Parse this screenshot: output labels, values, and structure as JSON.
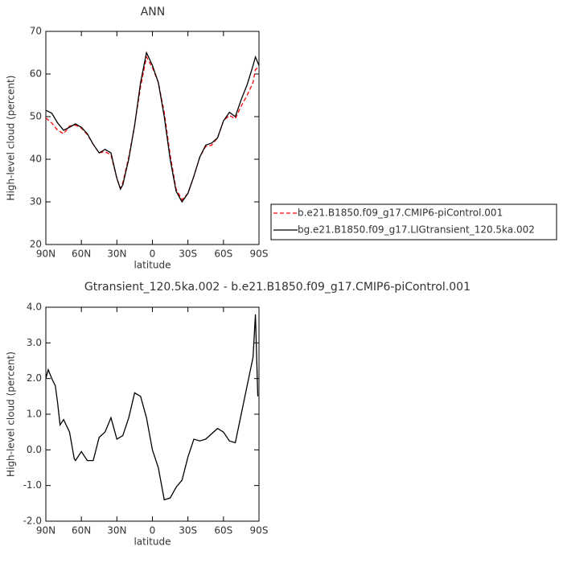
{
  "chart_data": [
    {
      "type": "line",
      "title": "ANN",
      "xlabel": "latitude",
      "ylabel": "High-level cloud (percent)",
      "x": [
        90,
        85,
        80,
        75,
        70,
        65,
        60,
        55,
        50,
        45,
        40,
        35,
        30,
        27,
        25,
        20,
        15,
        10,
        5,
        0,
        -5,
        -10,
        -15,
        -20,
        -25,
        -30,
        -35,
        -40,
        -45,
        -50,
        -55,
        -60,
        -65,
        -70,
        -75,
        -80,
        -85,
        -87,
        -90
      ],
      "series": [
        {
          "name": "b.e21.B1850.f09_g17.CMIP6-piControl.001",
          "color": "#ff0000",
          "dash": true,
          "values": [
            49.7,
            48.5,
            46.8,
            46,
            47.8,
            48,
            47.3,
            45.8,
            43.5,
            41.5,
            41.8,
            41,
            35.5,
            33.2,
            34.5,
            40.5,
            48,
            57,
            64,
            61.5,
            58,
            51,
            41,
            33,
            30.5,
            32,
            36,
            40.5,
            43,
            43.3,
            45,
            49,
            50.3,
            49.5,
            52.5,
            55,
            58,
            61,
            61.8
          ]
        },
        {
          "name": "bg.e21.B1850.f09_g17.LIGtransient_120.5ka.002",
          "color": "#000000",
          "dash": false,
          "values": [
            51.5,
            50.8,
            48.5,
            46.8,
            47.5,
            48.3,
            47.5,
            46,
            43.5,
            41.5,
            42.3,
            41.5,
            35.5,
            33,
            34,
            40,
            48,
            58,
            65,
            62,
            58,
            50,
            40,
            32.5,
            30,
            32,
            36,
            40.5,
            43.3,
            43.8,
            45,
            49,
            51,
            50,
            54,
            57.5,
            62,
            64,
            62
          ]
        }
      ],
      "xlim": [
        90,
        -90
      ],
      "xticks": [
        {
          "value": 90,
          "label": "90N"
        },
        {
          "value": 60,
          "label": "60N"
        },
        {
          "value": 30,
          "label": "30N"
        },
        0,
        {
          "value": -30,
          "label": "30S"
        },
        {
          "value": -60,
          "label": "60S"
        },
        {
          "value": -90,
          "label": "90S"
        }
      ],
      "ylim": [
        20,
        70
      ],
      "yticks": [
        20,
        30,
        40,
        50,
        60,
        70
      ]
    },
    {
      "type": "line",
      "title": "Gtransient_120.5ka.002 - b.e21.B1850.f09_g17.CMIP6-piControl.001",
      "xlabel": "latitude",
      "ylabel": "High-level cloud (percent)",
      "x": [
        90,
        88,
        85,
        82,
        80,
        78,
        75,
        70,
        66,
        65,
        60,
        55,
        50,
        45,
        40,
        35,
        30,
        25,
        20,
        15,
        10,
        5,
        0,
        -5,
        -10,
        -15,
        -20,
        -25,
        -30,
        -35,
        -40,
        -45,
        -50,
        -55,
        -60,
        -65,
        -70,
        -75,
        -80,
        -85,
        -87,
        -89
      ],
      "series": [
        {
          "color": "#000000",
          "dash": false,
          "values": [
            2.0,
            2.25,
            2.0,
            1.8,
            1.3,
            0.7,
            0.85,
            0.5,
            -0.25,
            -0.3,
            -0.05,
            -0.3,
            -0.3,
            0.35,
            0.5,
            0.9,
            0.3,
            0.4,
            0.9,
            1.6,
            1.5,
            0.9,
            0,
            -0.5,
            -1.4,
            -1.35,
            -1.05,
            -0.85,
            -0.2,
            0.3,
            0.25,
            0.3,
            0.45,
            0.6,
            0.5,
            0.25,
            0.2,
            1.0,
            1.8,
            2.6,
            3.8,
            1.5
          ]
        }
      ],
      "xlim": [
        90,
        -90
      ],
      "xticks": [
        {
          "value": 90,
          "label": "90N"
        },
        {
          "value": 60,
          "label": "60N"
        },
        {
          "value": 30,
          "label": "30N"
        },
        0,
        {
          "value": -30,
          "label": "30S"
        },
        {
          "value": -60,
          "label": "60S"
        },
        {
          "value": -90,
          "label": "90S"
        }
      ],
      "ylim": [
        -2,
        4
      ],
      "yticks": [
        {
          "value": -2,
          "label": "-2.0"
        },
        {
          "value": -1,
          "label": "-1.0"
        },
        {
          "value": 0,
          "label": "0.0"
        },
        {
          "value": 1,
          "label": "1.0"
        },
        {
          "value": 2,
          "label": "2.0"
        },
        {
          "value": 3,
          "label": "3.0"
        },
        {
          "value": 4,
          "label": "4.0"
        }
      ]
    }
  ]
}
